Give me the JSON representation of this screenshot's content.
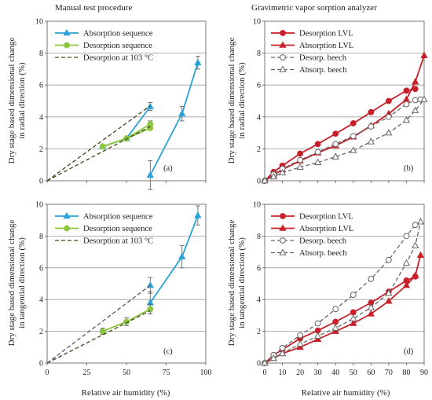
{
  "header": {
    "left_title": "Manual test procedure",
    "right_title": "Gravimetric vapor sorption analyzer"
  },
  "labels": {
    "ylabel_radial_1": "Dry stage based dimensional change",
    "ylabel_radial_2": "in radial direction (%)",
    "ylabel_tangential_1": "Dry stage based dimensional change",
    "ylabel_tangential_2": "in tangential direction (%)",
    "xlabel": "Relative air humidity (%)"
  },
  "colors": {
    "blue": "#29a3d6",
    "green": "#8cc63f",
    "olive": "#3d4a1e",
    "slate": "#4a5a6a",
    "red": "#c8202a",
    "gray": "#666666"
  },
  "chart_data": [
    {
      "id": "a",
      "type": "line",
      "panel_label": "(a)",
      "xlim": [
        0,
        100
      ],
      "ylim": [
        0,
        10
      ],
      "xticks": [
        0,
        25,
        50,
        75,
        100
      ],
      "yticks": [
        0,
        2,
        4,
        6,
        8,
        10
      ],
      "show_xtick_labels": false,
      "grid": "horizontal",
      "legend": "top-left",
      "series": [
        {
          "name": "Absorption sequence",
          "color": "#29a3d6",
          "marker": "triangle",
          "dash": "solid",
          "x": [
            35,
            50,
            65,
            65,
            85,
            95
          ],
          "y": [
            2.15,
            2.65,
            4.65,
            0.35,
            4.2,
            7.4
          ],
          "breaks": [
            3
          ],
          "err": [
            0,
            0,
            0.25,
            0.9,
            0.45,
            0.4
          ]
        },
        {
          "name": "Desorption sequence",
          "color": "#8cc63f",
          "marker": "circle",
          "dash": "solid",
          "x": [
            35,
            50,
            65
          ],
          "y": [
            2.15,
            2.65,
            3.55
          ],
          "err": [
            0.1,
            0.1,
            0.2
          ]
        },
        {
          "name": "",
          "color": "#8cc63f",
          "marker": "circle",
          "dash": "solid",
          "x": [
            35,
            50,
            65
          ],
          "y": [
            2.15,
            2.65,
            3.3
          ],
          "err": [
            0,
            0,
            0
          ]
        },
        {
          "name": "Desorption at 103 °C",
          "color": "#3d4a1e",
          "marker": "none",
          "dash": "dashed",
          "x": [
            0,
            65
          ],
          "y": [
            0,
            3.4
          ]
        },
        {
          "name": "",
          "color": "#3d4a1e",
          "marker": "none",
          "dash": "dashed",
          "x": [
            0,
            65
          ],
          "y": [
            0,
            4.7
          ]
        }
      ]
    },
    {
      "id": "b",
      "type": "line",
      "panel_label": "(b)",
      "xlim": [
        0,
        90
      ],
      "ylim": [
        0,
        10
      ],
      "xticks": [
        0,
        10,
        20,
        30,
        40,
        50,
        60,
        70,
        80,
        90
      ],
      "yticks": [
        0,
        2,
        4,
        6,
        8,
        10
      ],
      "show_xtick_labels": false,
      "grid": "horizontal",
      "legend": "top-left",
      "series": [
        {
          "name": "Desorption LVL",
          "color": "#c8202a",
          "marker": "circle",
          "dash": "solid",
          "x": [
            0,
            5,
            10,
            20,
            30,
            40,
            50,
            60,
            70,
            80,
            85
          ],
          "y": [
            0,
            0.55,
            0.95,
            1.7,
            2.3,
            2.95,
            3.6,
            4.3,
            5.0,
            5.65,
            5.75
          ]
        },
        {
          "name": "Absorption LVL",
          "color": "#c8202a",
          "marker": "triangle",
          "dash": "solid",
          "x": [
            0,
            5,
            10,
            20,
            30,
            40,
            50,
            60,
            70,
            80,
            85,
            90
          ],
          "y": [
            0,
            0.35,
            0.7,
            1.25,
            1.75,
            2.2,
            2.75,
            3.45,
            4.2,
            5.1,
            6.2,
            7.85
          ]
        },
        {
          "name": "Desorp. beech",
          "color": "#666666",
          "marker": "circle-open",
          "dash": "dashed",
          "x": [
            0,
            5,
            10,
            20,
            30,
            40,
            50,
            60,
            70,
            80,
            85,
            88
          ],
          "y": [
            0,
            0.4,
            0.75,
            1.3,
            1.8,
            2.3,
            2.8,
            3.4,
            4.0,
            4.8,
            5.05,
            5.1
          ]
        },
        {
          "name": "Absorp. beech",
          "color": "#666666",
          "marker": "triangle-open",
          "dash": "dashed",
          "x": [
            0,
            5,
            10,
            20,
            30,
            40,
            50,
            60,
            70,
            80,
            85,
            90
          ],
          "y": [
            0,
            0.25,
            0.5,
            0.85,
            1.15,
            1.5,
            1.9,
            2.45,
            3.0,
            3.8,
            4.4,
            5.1
          ]
        }
      ]
    },
    {
      "id": "c",
      "type": "line",
      "panel_label": "(c)",
      "xlim": [
        0,
        100
      ],
      "ylim": [
        0,
        10
      ],
      "xticks": [
        0,
        25,
        50,
        75,
        100
      ],
      "yticks": [
        0,
        2,
        4,
        6,
        8,
        10
      ],
      "show_xtick_labels": true,
      "grid": "horizontal",
      "legend": "top-left",
      "series": [
        {
          "name": "Absorption sequence",
          "color": "#29a3d6",
          "marker": "triangle",
          "dash": "solid",
          "x": [
            65,
            65,
            85,
            95
          ],
          "y": [
            4.9,
            3.8,
            6.7,
            9.3
          ],
          "breaks": [
            1
          ],
          "err": [
            0.5,
            0.7,
            0.7,
            0.6
          ]
        },
        {
          "name": "Desorption sequence",
          "color": "#8cc63f",
          "marker": "circle",
          "dash": "solid",
          "x": [
            35,
            50,
            65
          ],
          "y": [
            2.0,
            2.6,
            3.4
          ],
          "err": [
            0.2,
            0.25,
            0.3
          ]
        },
        {
          "name": "Desorption at 103 °C",
          "color": "#3d4a1e",
          "marker": "none",
          "dash": "dashed",
          "x": [
            0,
            65
          ],
          "y": [
            0,
            3.3
          ]
        },
        {
          "name": "",
          "color": "#4a5a6a",
          "marker": "none",
          "dash": "dashed",
          "x": [
            0,
            65
          ],
          "y": [
            0,
            4.9
          ]
        }
      ]
    },
    {
      "id": "d",
      "type": "line",
      "panel_label": "(d)",
      "xlim": [
        0,
        90
      ],
      "ylim": [
        0,
        10
      ],
      "xticks": [
        0,
        10,
        20,
        30,
        40,
        50,
        60,
        70,
        80,
        90
      ],
      "yticks": [
        0,
        2,
        4,
        6,
        8,
        10
      ],
      "show_xtick_labels": true,
      "grid": "horizontal",
      "legend": "top-left",
      "series": [
        {
          "name": "Desorption LVL",
          "color": "#c8202a",
          "marker": "circle",
          "dash": "solid",
          "x": [
            0,
            5,
            10,
            20,
            30,
            40,
            50,
            60,
            70,
            80,
            85
          ],
          "y": [
            0,
            0.5,
            0.85,
            1.55,
            2.05,
            2.6,
            3.2,
            3.8,
            4.5,
            5.2,
            5.45
          ]
        },
        {
          "name": "Absorption LVL",
          "color": "#c8202a",
          "marker": "triangle",
          "dash": "solid",
          "x": [
            0,
            5,
            10,
            20,
            30,
            40,
            50,
            60,
            70,
            80,
            85,
            88
          ],
          "y": [
            0,
            0.3,
            0.6,
            1.0,
            1.5,
            2.0,
            2.5,
            3.1,
            3.9,
            4.9,
            5.5,
            6.8
          ]
        },
        {
          "name": "Desorp. beech",
          "color": "#666666",
          "marker": "circle-open",
          "dash": "dashed",
          "x": [
            0,
            5,
            10,
            20,
            30,
            40,
            50,
            60,
            70,
            80,
            85
          ],
          "y": [
            0,
            0.5,
            0.95,
            1.75,
            2.5,
            3.4,
            4.3,
            5.3,
            6.5,
            8.0,
            8.7
          ]
        },
        {
          "name": "Absorp. beech",
          "color": "#666666",
          "marker": "triangle-open",
          "dash": "dashed",
          "x": [
            0,
            5,
            10,
            20,
            30,
            40,
            50,
            60,
            70,
            80,
            85,
            88
          ],
          "y": [
            0,
            0.3,
            0.6,
            1.2,
            1.7,
            2.2,
            2.8,
            3.5,
            4.4,
            6.3,
            7.4,
            8.9
          ]
        }
      ]
    }
  ]
}
